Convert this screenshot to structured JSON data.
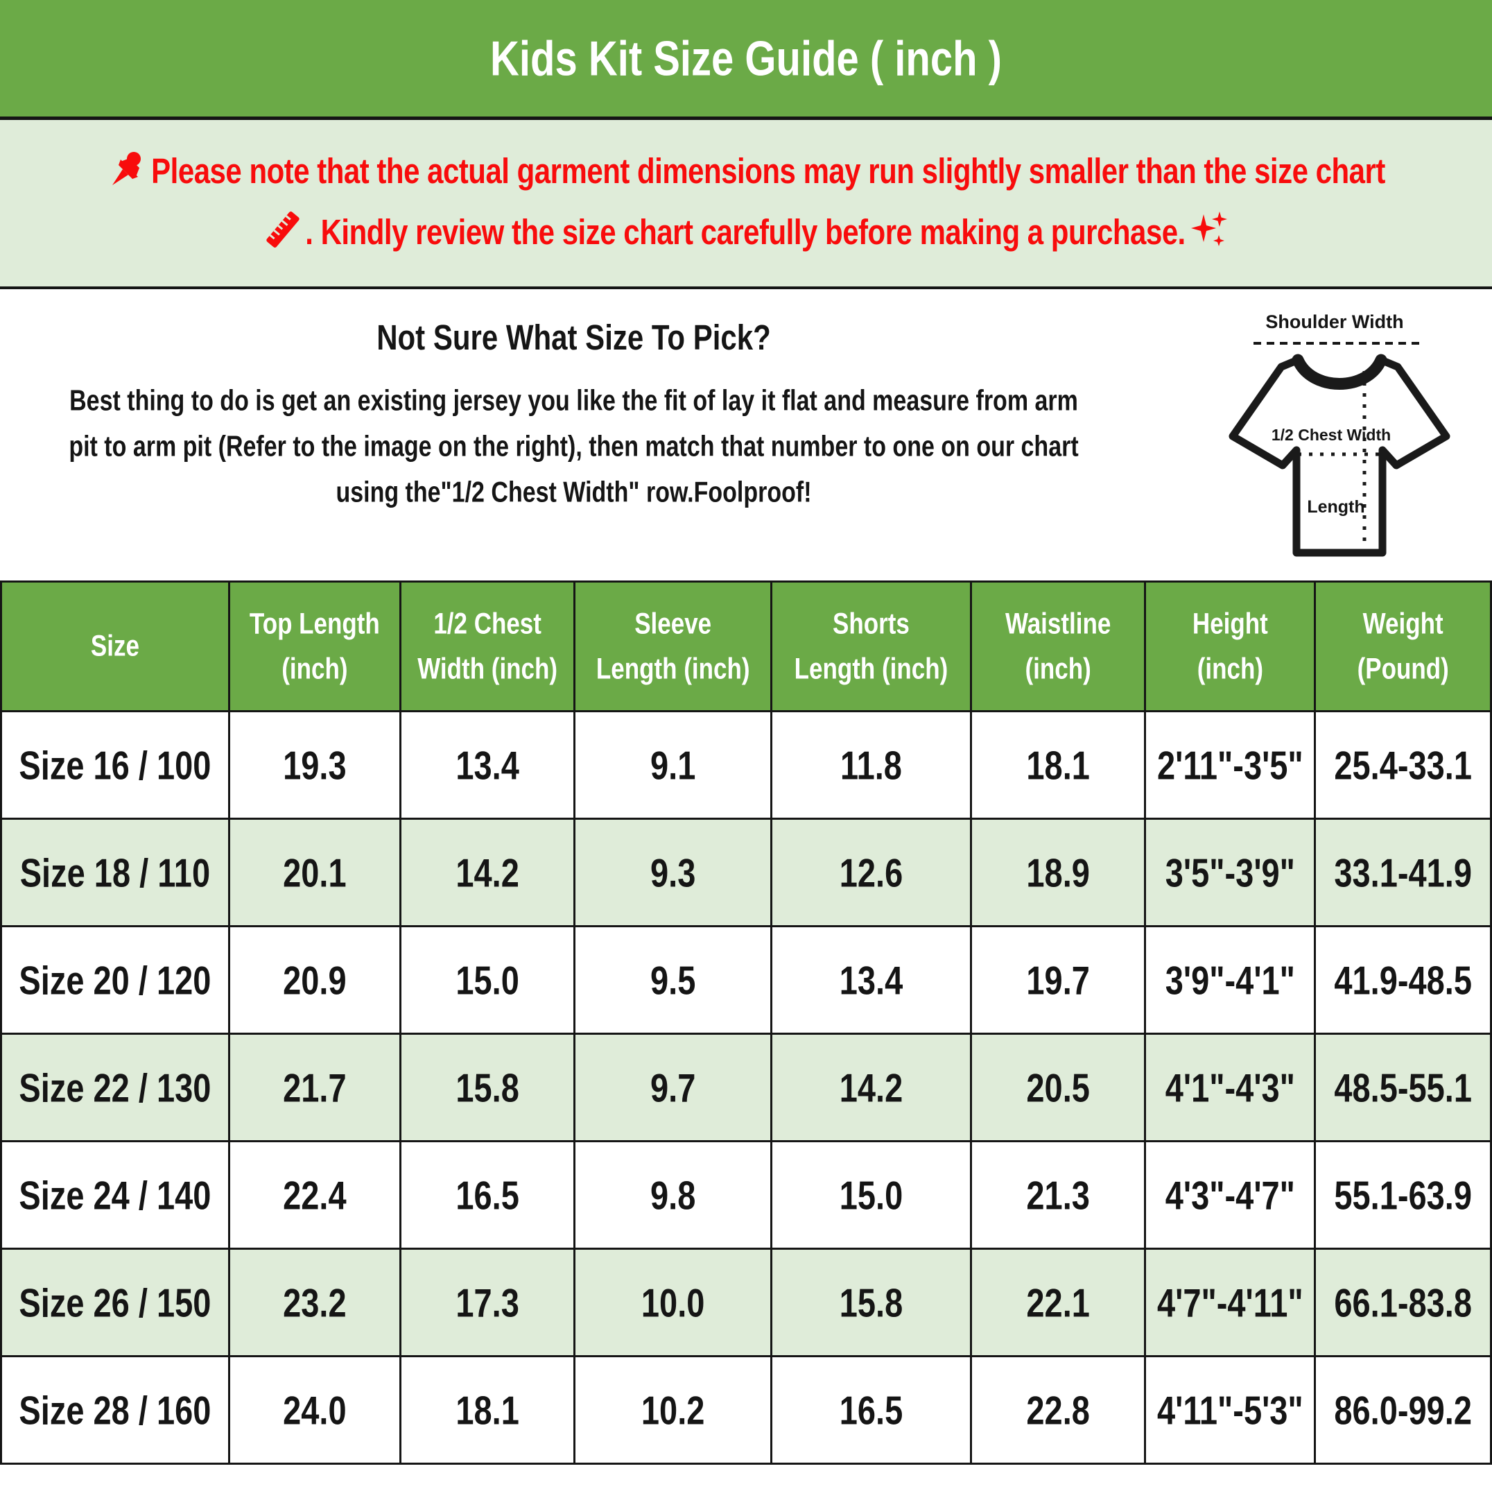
{
  "title": "Kids Kit Size Guide ( inch )",
  "notice": {
    "line1": "Please note that the actual garment dimensions may run slightly smaller than the size chart",
    "line2": ". Kindly review the size chart carefully before making a purchase.",
    "icons": [
      "pushpin-icon",
      "ruler-icon",
      "sparkles-icon"
    ]
  },
  "guide": {
    "heading": "Not Sure What Size To Pick?",
    "body_lines": [
      "Best thing to do is get an existing jersey you like the fit of lay it flat and measure from arm",
      "pit to arm pit (Refer to the image on the right), then match that number to one on our chart",
      "using the\"1/2 Chest Width\" row.Foolproof!"
    ]
  },
  "diagram": {
    "shoulder_label": "Shoulder Width",
    "chest_label": "1/2 Chest Width",
    "length_label": "Length"
  },
  "table": {
    "headers": [
      [
        "Size"
      ],
      [
        "Top Length",
        "(inch)"
      ],
      [
        "1/2 Chest",
        "Width (inch)"
      ],
      [
        "Sleeve",
        "Length (inch)"
      ],
      [
        "Shorts",
        "Length (inch)"
      ],
      [
        "Waistline",
        "(inch)"
      ],
      [
        "Height",
        "(inch)"
      ],
      [
        "Weight",
        "(Pound)"
      ]
    ],
    "rows": [
      [
        "Size 16 / 100",
        "19.3",
        "13.4",
        "9.1",
        "11.8",
        "18.1",
        "2'11\"-3'5\"",
        "25.4-33.1"
      ],
      [
        "Size 18 / 110",
        "20.1",
        "14.2",
        "9.3",
        "12.6",
        "18.9",
        "3'5\"-3'9\"",
        "33.1-41.9"
      ],
      [
        "Size 20 / 120",
        "20.9",
        "15.0",
        "9.5",
        "13.4",
        "19.7",
        "3'9\"-4'1\"",
        "41.9-48.5"
      ],
      [
        "Size 22 / 130",
        "21.7",
        "15.8",
        "9.7",
        "14.2",
        "20.5",
        "4'1\"-4'3\"",
        "48.5-55.1"
      ],
      [
        "Size 24 / 140",
        "22.4",
        "16.5",
        "9.8",
        "15.0",
        "21.3",
        "4'3\"-4'7\"",
        "55.1-63.9"
      ],
      [
        "Size 26 / 150",
        "23.2",
        "17.3",
        "10.0",
        "15.8",
        "22.1",
        "4'7\"-4'11\"",
        "66.1-83.8"
      ],
      [
        "Size 28 / 160",
        "24.0",
        "18.1",
        "10.2",
        "16.5",
        "22.8",
        "4'11\"-5'3\"",
        "86.0-99.2"
      ]
    ]
  },
  "colors": {
    "header_green": "#6baa47",
    "light_green": "#dfecd9",
    "notice_red": "#f80c0c",
    "line_black": "#151515",
    "text_white": "#ffffff"
  }
}
